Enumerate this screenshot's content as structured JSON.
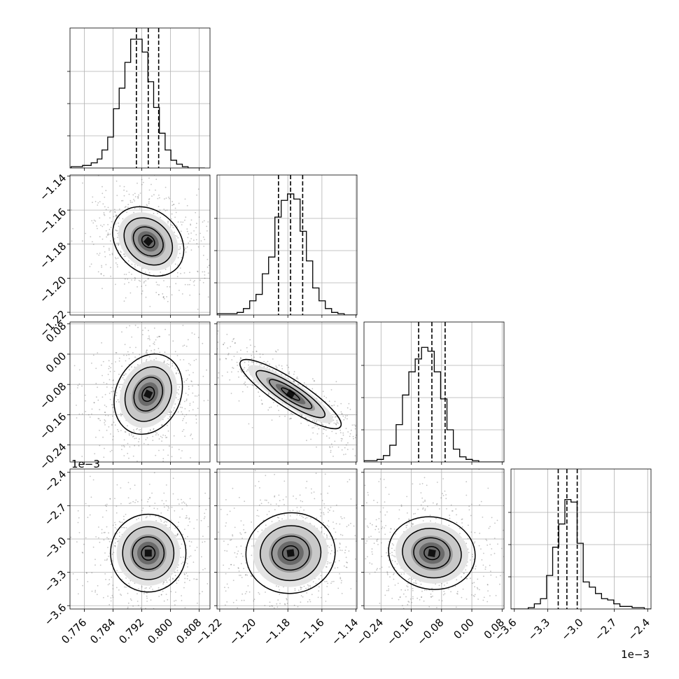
{
  "chart_data": {
    "type": "corner",
    "grid": true,
    "quantile_lines": "dashed",
    "parameters": [
      {
        "range": [
          0.772,
          0.811
        ],
        "ticks": [
          0.776,
          0.784,
          0.792,
          0.8,
          0.808
        ],
        "tick_labels": [
          "0.776",
          "0.784",
          "0.792",
          "0.800",
          "0.808"
        ],
        "quantiles": [
          0.7905,
          0.7938,
          0.7967
        ],
        "median": 0.7938,
        "sigma": 0.003,
        "hist_edges": [
          0.7723,
          0.7755,
          0.7779,
          0.7796,
          0.7809,
          0.7825,
          0.7841,
          0.7857,
          0.7873,
          0.7889,
          0.7905,
          0.7921,
          0.7937,
          0.7953,
          0.7969,
          0.7985,
          0.8001,
          0.8017,
          0.8033,
          0.8049,
          0.8065,
          0.8081,
          0.8096
        ],
        "hist_heights": [
          0.01,
          0.02,
          0.04,
          0.07,
          0.14,
          0.24,
          0.46,
          0.62,
          0.82,
          1.0,
          1.0,
          0.9,
          0.67,
          0.47,
          0.27,
          0.14,
          0.06,
          0.03,
          0.01,
          0.0,
          0.0,
          0.0
        ]
      },
      {
        "range": [
          -1.2216,
          -1.1394
        ],
        "ticks": [
          -1.22,
          -1.2,
          -1.18,
          -1.16,
          -1.14
        ],
        "tick_labels": [
          "−1.22",
          "−1.20",
          "−1.18",
          "−1.16",
          "−1.14"
        ],
        "quantiles": [
          -1.1855,
          -1.1784,
          -1.1713
        ],
        "median": -1.1784,
        "sigma": 0.0075,
        "hist_edges": [
          -1.2216,
          -1.2098,
          -1.2061,
          -1.2024,
          -1.1987,
          -1.195,
          -1.1913,
          -1.1876,
          -1.1839,
          -1.1802,
          -1.1765,
          -1.1728,
          -1.1691,
          -1.1654,
          -1.1617,
          -1.158,
          -1.1543,
          -1.1506,
          -1.1469,
          -1.1432,
          -1.1394
        ],
        "hist_heights": [
          0.01,
          0.02,
          0.05,
          0.11,
          0.16,
          0.32,
          0.45,
          0.76,
          0.89,
          0.94,
          0.9,
          0.65,
          0.42,
          0.21,
          0.11,
          0.05,
          0.02,
          0.01,
          0.0,
          0.0
        ]
      },
      {
        "range": [
          -0.285,
          0.085
        ],
        "ticks": [
          -0.24,
          -0.16,
          -0.08,
          0.0,
          0.08
        ],
        "tick_labels": [
          "−0.24",
          "−0.16",
          "−0.08",
          "0.00",
          "0.08"
        ],
        "quantiles": [
          -0.1406,
          -0.1056,
          -0.0706
        ],
        "median": -0.1056,
        "sigma": 0.035,
        "offset_text": "1e−3",
        "hist_edges": [
          -0.285,
          -0.2505,
          -0.2337,
          -0.2169,
          -0.2001,
          -0.1833,
          -0.1665,
          -0.1497,
          -0.1329,
          -0.1161,
          -0.0993,
          -0.0825,
          -0.0657,
          -0.0489,
          -0.0321,
          -0.0153,
          0.0015,
          0.0183,
          0.0351,
          0.085
        ],
        "hist_heights": [
          0.01,
          0.02,
          0.05,
          0.13,
          0.29,
          0.52,
          0.7,
          0.8,
          0.89,
          0.86,
          0.7,
          0.49,
          0.25,
          0.1,
          0.04,
          0.02,
          0.01,
          0.0,
          0.0
        ]
      },
      {
        "range": [
          -3.63,
          -2.37
        ],
        "ticks": [
          -3.6,
          -3.3,
          -3.0,
          -2.7,
          -2.4
        ],
        "tick_labels": [
          "−3.6",
          "−3.3",
          "−3.0",
          "−2.7",
          "−2.4"
        ],
        "quantiles": [
          -3.205,
          -3.127,
          -3.034
        ],
        "median": -3.127,
        "sigma": 0.09,
        "offset_text": "1e−3",
        "hist_edges": [
          -3.63,
          -3.53,
          -3.475,
          -3.42,
          -3.365,
          -3.31,
          -3.255,
          -3.2,
          -3.145,
          -3.09,
          -3.035,
          -2.98,
          -2.925,
          -2.87,
          -2.815,
          -2.76,
          -2.705,
          -2.65,
          -2.595,
          -2.54,
          -2.485,
          -2.43,
          -2.37
        ],
        "hist_heights": [
          0.0,
          0.0,
          0.01,
          0.04,
          0.08,
          0.26,
          0.48,
          0.66,
          0.85,
          0.83,
          0.51,
          0.21,
          0.17,
          0.12,
          0.08,
          0.07,
          0.04,
          0.02,
          0.02,
          0.01,
          0.01,
          0.0
        ]
      }
    ],
    "pairs": [
      {
        "row": 1,
        "col": 0,
        "center": [
          0.7938,
          -1.1784
        ],
        "spread": [
          0.0034,
          0.0092
        ],
        "angle_deg": 48
      },
      {
        "row": 2,
        "col": 0,
        "center": [
          0.7938,
          -0.1056
        ],
        "spread": [
          0.0036,
          0.044
        ],
        "angle_deg": -25
      },
      {
        "row": 2,
        "col": 1,
        "center": [
          -1.1784,
          -0.1056
        ],
        "spread": [
          0.014,
          0.015
        ],
        "angle_deg": -33
      },
      {
        "row": 3,
        "col": 0,
        "center": [
          0.7938,
          -3.127
        ],
        "spread": [
          0.0042,
          0.14
        ],
        "angle_deg": 0
      },
      {
        "row": 3,
        "col": 1,
        "center": [
          -1.1784,
          -3.127
        ],
        "spread": [
          0.0105,
          0.145
        ],
        "angle_deg": 8
      },
      {
        "row": 3,
        "col": 2,
        "center": [
          -0.1056,
          -3.127
        ],
        "spread": [
          0.046,
          0.13
        ],
        "angle_deg": -10
      }
    ],
    "contour_levels": [
      0.118,
      0.393,
      0.675,
      0.865
    ]
  },
  "colors": {
    "line": "#000000",
    "grid": "#b0b0b0",
    "points": "#555555",
    "background": "#ffffff"
  }
}
